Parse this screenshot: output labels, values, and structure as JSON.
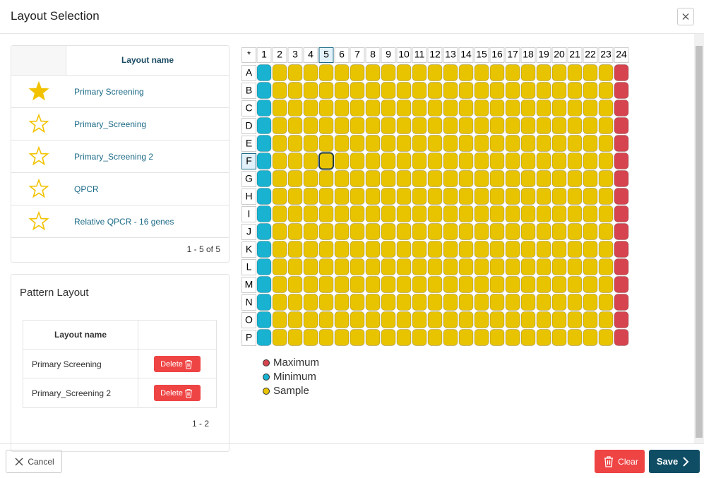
{
  "header": {
    "title": "Layout Selection"
  },
  "layouts_table": {
    "column": "Layout name",
    "rows": [
      {
        "favorite": true,
        "name": "Primary Screening"
      },
      {
        "favorite": false,
        "name": "Primary_Screening"
      },
      {
        "favorite": false,
        "name": "Primary_Screening 2"
      },
      {
        "favorite": false,
        "name": "QPCR"
      },
      {
        "favorite": false,
        "name": "Relative QPCR - 16 genes"
      }
    ],
    "pagination": "1 - 5 of 5"
  },
  "pattern_layout": {
    "title": "Pattern Layout",
    "column": "Layout name",
    "rows": [
      "Primary Screening",
      "Primary_Screening 2"
    ],
    "delete_label": "Delete",
    "pagination": "1 - 2"
  },
  "plate": {
    "corner": "*",
    "columns": [
      "1",
      "2",
      "3",
      "4",
      "5",
      "6",
      "7",
      "8",
      "9",
      "10",
      "11",
      "12",
      "13",
      "14",
      "15",
      "16",
      "17",
      "18",
      "19",
      "20",
      "21",
      "22",
      "23",
      "24"
    ],
    "rows": [
      "A",
      "B",
      "C",
      "D",
      "E",
      "F",
      "G",
      "H",
      "I",
      "J",
      "K",
      "L",
      "M",
      "N",
      "O",
      "P"
    ],
    "column_well_type": [
      "Minimum",
      "Sample",
      "Sample",
      "Sample",
      "Sample",
      "Sample",
      "Sample",
      "Sample",
      "Sample",
      "Sample",
      "Sample",
      "Sample",
      "Sample",
      "Sample",
      "Sample",
      "Sample",
      "Sample",
      "Sample",
      "Sample",
      "Sample",
      "Sample",
      "Sample",
      "Sample",
      "Maximum"
    ],
    "selected_column": "5",
    "selected_row": "F"
  },
  "legend": [
    {
      "name": "Maximum",
      "color": "#d6444f"
    },
    {
      "name": "Minimum",
      "color": "#19b2d1"
    },
    {
      "name": "Sample",
      "color": "#e8c300"
    }
  ],
  "footer": {
    "cancel": "Cancel",
    "clear": "Clear",
    "save": "Save"
  }
}
